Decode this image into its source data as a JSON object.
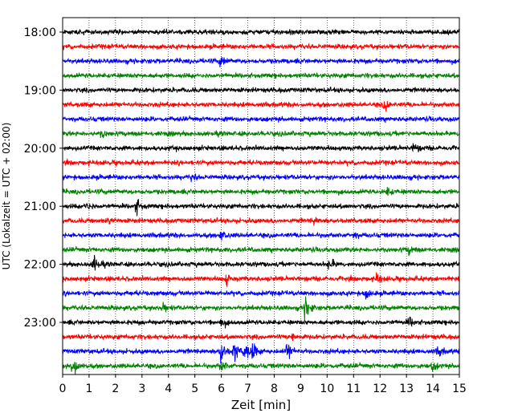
{
  "chart_data": {
    "type": "line",
    "title": "",
    "xlabel": "Zeit  [min]",
    "ylabel": "UTC (Lokalzeit = UTC + 02:00)",
    "xlim": [
      0,
      15
    ],
    "x_ticks": [
      "0",
      "1",
      "2",
      "3",
      "4",
      "5",
      "6",
      "7",
      "8",
      "9",
      "10",
      "11",
      "12",
      "13",
      "14",
      "15"
    ],
    "y_ticks": [
      {
        "label": "18:00",
        "row": 0
      },
      {
        "label": "19:00",
        "row": 4
      },
      {
        "label": "20:00",
        "row": 8
      },
      {
        "label": "21:00",
        "row": 12
      },
      {
        "label": "22:00",
        "row": 16
      },
      {
        "label": "23:00",
        "row": 20
      }
    ],
    "grid": {
      "x": true,
      "y": false,
      "style": "dotted"
    },
    "trace_colors": [
      "#000000",
      "#ff0000",
      "#0000ff",
      "#008000"
    ],
    "series": [
      {
        "start": "18:00",
        "events": []
      },
      {
        "start": "18:15",
        "events": []
      },
      {
        "start": "18:30",
        "events": [
          {
            "x": 6.0,
            "amp": 0.35
          }
        ]
      },
      {
        "start": "18:45",
        "events": []
      },
      {
        "start": "19:00",
        "events": []
      },
      {
        "start": "19:15",
        "events": [
          {
            "x": 12.2,
            "amp": 0.25
          }
        ]
      },
      {
        "start": "19:30",
        "events": []
      },
      {
        "start": "19:45",
        "events": [
          {
            "x": 1.5,
            "amp": 0.25
          }
        ]
      },
      {
        "start": "20:00",
        "events": [
          {
            "x": 13.3,
            "amp": 0.3
          }
        ]
      },
      {
        "start": "20:15",
        "events": []
      },
      {
        "start": "20:30",
        "events": [
          {
            "x": 4.9,
            "amp": 0.2
          }
        ]
      },
      {
        "start": "20:45",
        "events": [
          {
            "x": 12.3,
            "amp": 0.2
          }
        ]
      },
      {
        "start": "21:00",
        "events": [
          {
            "x": 2.8,
            "amp": 0.4
          },
          {
            "x": 0.9,
            "amp": 0.25
          }
        ]
      },
      {
        "start": "21:15",
        "events": [
          {
            "x": 1.7,
            "amp": 0.2
          },
          {
            "x": 9.5,
            "amp": 0.2
          }
        ]
      },
      {
        "start": "21:30",
        "events": [
          {
            "x": 6.0,
            "amp": 0.3
          },
          {
            "x": 11.0,
            "amp": 0.2
          }
        ]
      },
      {
        "start": "21:45",
        "events": [
          {
            "x": 13.1,
            "amp": 0.25
          }
        ]
      },
      {
        "start": "22:00",
        "events": [
          {
            "x": 1.2,
            "amp": 0.45
          },
          {
            "x": 10.1,
            "amp": 0.35
          }
        ]
      },
      {
        "start": "22:15",
        "events": [
          {
            "x": 6.2,
            "amp": 0.3
          },
          {
            "x": 11.9,
            "amp": 0.3
          }
        ]
      },
      {
        "start": "22:30",
        "events": [
          {
            "x": 11.5,
            "amp": 0.3
          }
        ]
      },
      {
        "start": "22:45",
        "events": [
          {
            "x": 9.2,
            "amp": 0.75
          },
          {
            "x": 3.8,
            "amp": 0.25
          }
        ]
      },
      {
        "start": "23:00",
        "events": [
          {
            "x": 6.0,
            "amp": 0.3
          },
          {
            "x": 13.1,
            "amp": 0.3
          }
        ]
      },
      {
        "start": "23:15",
        "events": [
          {
            "x": 8.7,
            "amp": 0.25
          }
        ]
      },
      {
        "start": "23:30",
        "events": [
          {
            "x": 6.0,
            "amp": 0.8
          },
          {
            "x": 6.5,
            "amp": 0.6
          },
          {
            "x": 6.9,
            "amp": 0.55
          },
          {
            "x": 7.2,
            "amp": 0.45
          },
          {
            "x": 8.5,
            "amp": 0.6
          },
          {
            "x": 14.2,
            "amp": 0.3
          }
        ]
      },
      {
        "start": "23:45",
        "events": [
          {
            "x": 0.4,
            "amp": 0.85
          },
          {
            "x": 6.0,
            "amp": 0.3
          },
          {
            "x": 14.0,
            "amp": 0.25
          }
        ]
      }
    ]
  }
}
